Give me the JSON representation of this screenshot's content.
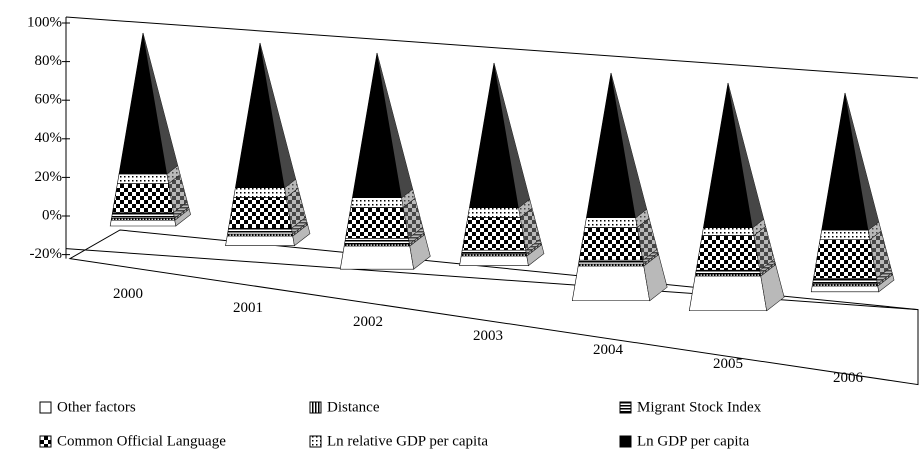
{
  "chart_data": {
    "type": "pyramid",
    "categories": [
      "2000",
      "2001",
      "2002",
      "2003",
      "2004",
      "2005",
      "2006"
    ],
    "series": [
      {
        "name": "Other factors",
        "color": "#ffffff",
        "pattern": "none",
        "values": [
          3,
          -5,
          -12,
          -5,
          -18,
          -18,
          -3
        ]
      },
      {
        "name": "Distance",
        "color": "#000000",
        "pattern": "vertical-stripes",
        "values": [
          1,
          1,
          1,
          1,
          1,
          1,
          1
        ]
      },
      {
        "name": "Migrant Stock Index",
        "color": "#000000",
        "pattern": "horizontal-stripes",
        "values": [
          3,
          3,
          3,
          2,
          2,
          2,
          3
        ]
      },
      {
        "name": "Common  Official Language",
        "color": "#000000",
        "pattern": "checker",
        "values": [
          15,
          16,
          16,
          17,
          17,
          18,
          20
        ]
      },
      {
        "name": "Ln relative GDP per capita",
        "color": "#000000",
        "pattern": "dots",
        "values": [
          5,
          5,
          5,
          5,
          5,
          4,
          5
        ]
      },
      {
        "name": "Ln GDP per capita",
        "color": "#000000",
        "pattern": "solid",
        "values": [
          73,
          75,
          75,
          75,
          75,
          75,
          71
        ]
      }
    ],
    "ylim": [
      -20,
      100
    ],
    "yticks": [
      {
        "value": -20,
        "label": "-20%"
      },
      {
        "value": 0,
        "label": "0%"
      },
      {
        "value": 20,
        "label": "20%"
      },
      {
        "value": 40,
        "label": "40%"
      },
      {
        "value": 60,
        "label": "60%"
      },
      {
        "value": 80,
        "label": "80%"
      },
      {
        "value": 100,
        "label": "100%"
      }
    ],
    "grid": false
  }
}
